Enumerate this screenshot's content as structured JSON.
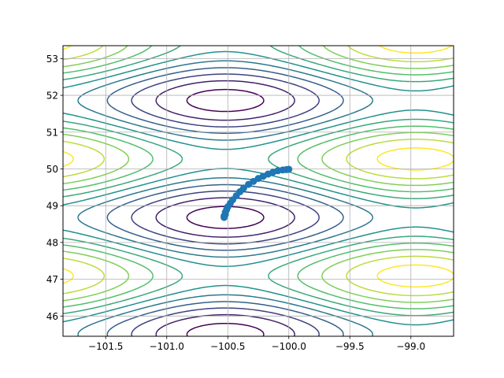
{
  "chart_data": {
    "type": "contour",
    "title": "",
    "xlabel": "",
    "ylabel": "",
    "xlim": [
      -101.85,
      -98.65
    ],
    "ylim": [
      45.45,
      53.35
    ],
    "xticks": [
      -101.5,
      -101.0,
      -100.5,
      -100.0,
      -99.5,
      -99.0
    ],
    "xtick_labels": [
      "−101.5",
      "−101.0",
      "−100.5",
      "−100.0",
      "−99.5",
      "−99.0"
    ],
    "yticks": [
      46,
      47,
      48,
      49,
      50,
      51,
      52,
      53
    ],
    "ytick_labels": [
      "46",
      "47",
      "48",
      "49",
      "50",
      "51",
      "52",
      "53"
    ],
    "grid": true,
    "legend": "none",
    "colormap": "viridis",
    "contour_levels": 11,
    "surface": {
      "minima": [
        [
          -100.52,
          48.68
        ],
        [
          -100.52,
          51.86
        ],
        [
          -100.52,
          45.5
        ]
      ],
      "maxima": [
        [
          -98.96,
          50.27
        ],
        [
          -98.96,
          47.09
        ],
        [
          -98.96,
          53.45
        ],
        [
          -102.08,
          50.27
        ],
        [
          -102.08,
          47.09
        ]
      ],
      "x_period": 3.12,
      "y_period": 3.18
    },
    "series": [
      {
        "type": "scatter-path",
        "color": "#1f77b4",
        "x": [
          -100.0,
          -100.02,
          -100.05,
          -100.09,
          -100.13,
          -100.17,
          -100.21,
          -100.25,
          -100.29,
          -100.33,
          -100.37,
          -100.4,
          -100.43,
          -100.46,
          -100.48,
          -100.5,
          -100.51,
          -100.52,
          -100.52,
          -100.53,
          -100.53
        ],
        "y": [
          49.99,
          49.98,
          49.97,
          49.95,
          49.91,
          49.86,
          49.8,
          49.74,
          49.66,
          49.58,
          49.48,
          49.38,
          49.27,
          49.16,
          49.06,
          48.97,
          48.89,
          48.82,
          48.76,
          48.72,
          48.68
        ]
      }
    ],
    "colors": {
      "path": "#1f77b4",
      "grid": "#b0b0b0",
      "axes": "#000000"
    }
  }
}
